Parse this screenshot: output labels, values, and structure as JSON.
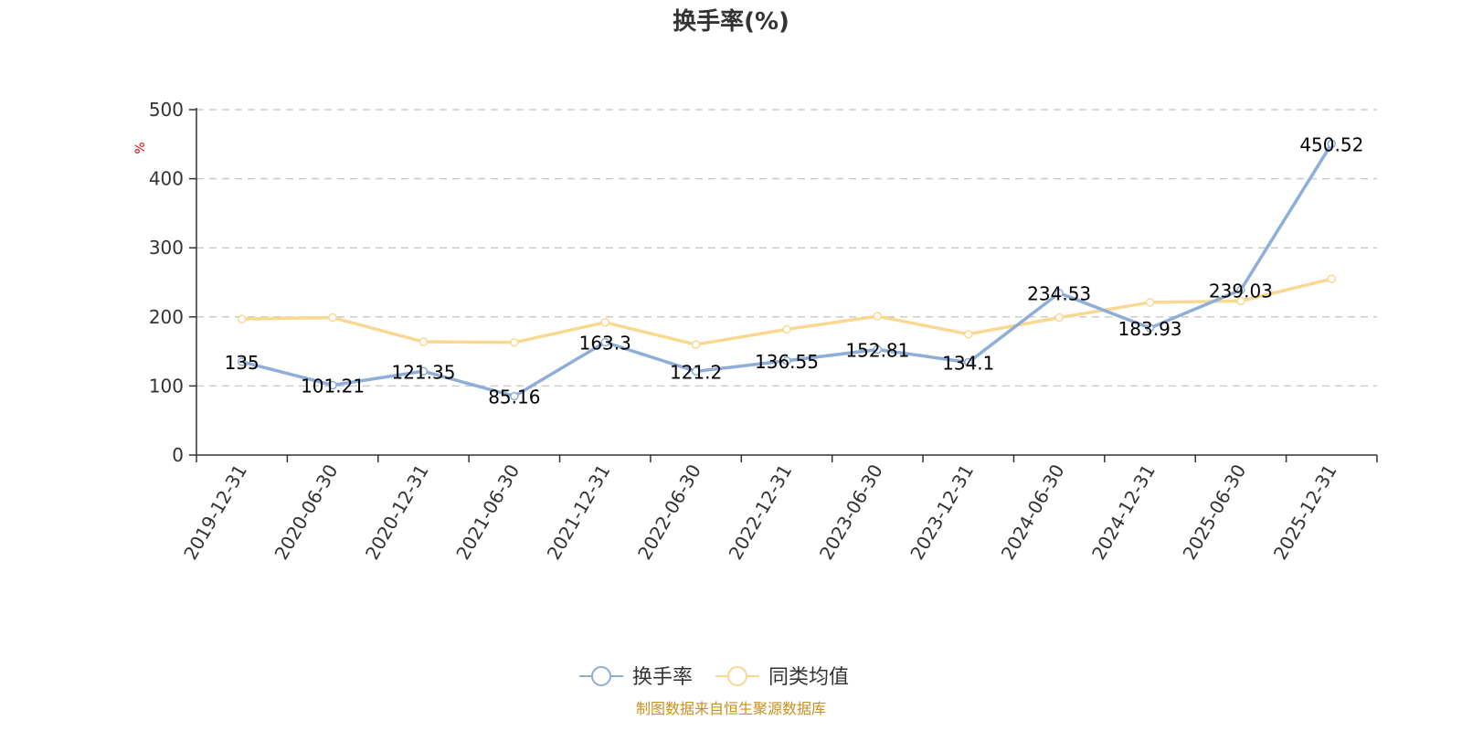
{
  "chart_data": {
    "type": "line",
    "title": "换手率(%)",
    "ylabel": "%",
    "ylim": [
      0,
      500
    ],
    "yticks": [
      0,
      100,
      200,
      300,
      400,
      500
    ],
    "grid": true,
    "legend_position": "bottom-center",
    "categories": [
      "2019-12-31",
      "2020-06-30",
      "2020-12-31",
      "2021-06-30",
      "2021-12-31",
      "2022-06-30",
      "2022-12-31",
      "2023-06-30",
      "2023-12-31",
      "2024-06-30",
      "2024-12-31",
      "2025-06-30",
      "2025-12-31"
    ],
    "series": [
      {
        "name": "换手率",
        "color": "#8eaed8",
        "values": [
          135,
          101.21,
          121.35,
          85.16,
          163.3,
          121.2,
          136.55,
          152.81,
          134.1,
          234.53,
          183.93,
          239.03,
          450.52
        ],
        "labels": [
          "135",
          "101.21",
          "121.35",
          "85.16",
          "163.3",
          "121.2",
          "136.55",
          "152.81",
          "134.1",
          "234.53",
          "183.93",
          "239.03",
          "450.52"
        ]
      },
      {
        "name": "同类均值",
        "color": "#fbd892",
        "values": [
          197,
          199,
          164,
          163,
          192,
          160,
          182,
          201,
          175,
          199,
          221,
          223,
          255
        ]
      }
    ],
    "source": "制图数据来自恒生聚源数据库",
    "source_color": "#c8901e"
  }
}
